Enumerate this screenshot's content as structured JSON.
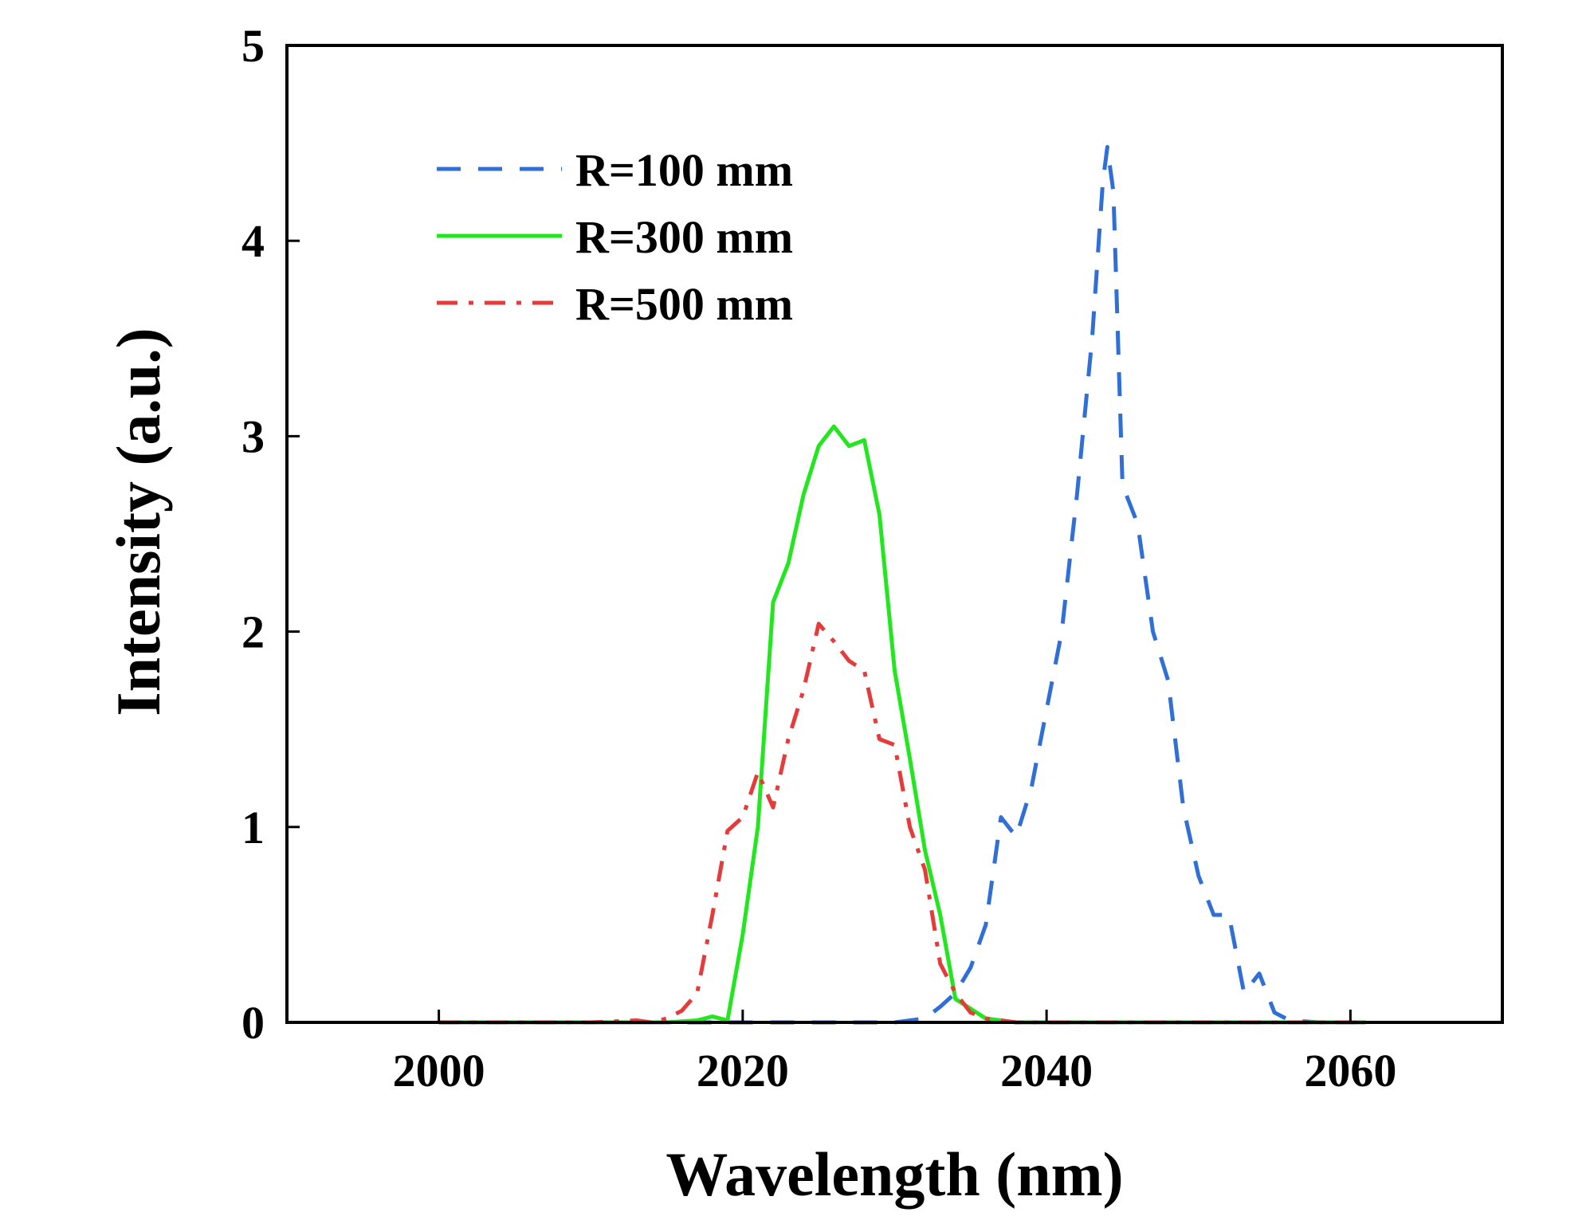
{
  "chart_data": {
    "type": "line",
    "title": "",
    "xlabel": "Wavelength (nm)",
    "ylabel": "Intensity (a.u.)",
    "xlim": [
      1990,
      2070
    ],
    "ylim": [
      0,
      5
    ],
    "xticks": [
      2000,
      2020,
      2040,
      2060
    ],
    "yticks": [
      0,
      1,
      2,
      3,
      4,
      5
    ],
    "grid": false,
    "legend_position": "top-left",
    "series": [
      {
        "name": "R=100 mm",
        "color": "#2f6fd6",
        "style": "dashed",
        "points": [
          [
            2000,
            0
          ],
          [
            2010,
            0
          ],
          [
            2020,
            0
          ],
          [
            2025,
            0
          ],
          [
            2030,
            0
          ],
          [
            2032,
            0.02
          ],
          [
            2033,
            0.08
          ],
          [
            2034,
            0.15
          ],
          [
            2035,
            0.28
          ],
          [
            2036,
            0.5
          ],
          [
            2037,
            1.05
          ],
          [
            2038,
            0.95
          ],
          [
            2039,
            1.2
          ],
          [
            2040,
            1.6
          ],
          [
            2041,
            2.0
          ],
          [
            2042,
            2.7
          ],
          [
            2043,
            3.5
          ],
          [
            2043.7,
            4.3
          ],
          [
            2044,
            4.48
          ],
          [
            2044.4,
            4.25
          ],
          [
            2045,
            2.75
          ],
          [
            2046,
            2.55
          ],
          [
            2047,
            2.0
          ],
          [
            2048,
            1.75
          ],
          [
            2049,
            1.1
          ],
          [
            2050,
            0.75
          ],
          [
            2051,
            0.55
          ],
          [
            2052,
            0.55
          ],
          [
            2053,
            0.15
          ],
          [
            2054,
            0.25
          ],
          [
            2055,
            0.05
          ],
          [
            2056,
            0.01
          ],
          [
            2058,
            0
          ],
          [
            2060,
            0
          ],
          [
            2061,
            0
          ]
        ]
      },
      {
        "name": "R=300 mm",
        "color": "#22e61e",
        "style": "solid",
        "points": [
          [
            2000,
            0
          ],
          [
            2010,
            0
          ],
          [
            2015,
            0
          ],
          [
            2017,
            0.01
          ],
          [
            2018,
            0.03
          ],
          [
            2019,
            0.01
          ],
          [
            2020,
            0.45
          ],
          [
            2021,
            1.0
          ],
          [
            2022,
            2.15
          ],
          [
            2023,
            2.35
          ],
          [
            2024,
            2.7
          ],
          [
            2025,
            2.95
          ],
          [
            2026,
            3.05
          ],
          [
            2027,
            2.95
          ],
          [
            2028,
            2.98
          ],
          [
            2029,
            2.6
          ],
          [
            2030,
            1.8
          ],
          [
            2031,
            1.35
          ],
          [
            2032,
            0.88
          ],
          [
            2033,
            0.55
          ],
          [
            2034,
            0.12
          ],
          [
            2035,
            0.07
          ],
          [
            2036,
            0.02
          ],
          [
            2037,
            0.01
          ],
          [
            2038,
            0
          ],
          [
            2040,
            0
          ],
          [
            2060,
            0
          ],
          [
            2061,
            0
          ]
        ]
      },
      {
        "name": "R=500 mm",
        "color": "#e53b3b",
        "style": "dashdot",
        "points": [
          [
            2000,
            0
          ],
          [
            2010,
            0
          ],
          [
            2013,
            0.01
          ],
          [
            2014,
            0
          ],
          [
            2015,
            0.02
          ],
          [
            2016,
            0.06
          ],
          [
            2017,
            0.15
          ],
          [
            2018,
            0.55
          ],
          [
            2019,
            0.98
          ],
          [
            2020,
            1.05
          ],
          [
            2021,
            1.28
          ],
          [
            2022,
            1.1
          ],
          [
            2023,
            1.45
          ],
          [
            2024,
            1.7
          ],
          [
            2025,
            2.04
          ],
          [
            2026,
            1.95
          ],
          [
            2027,
            1.85
          ],
          [
            2028,
            1.8
          ],
          [
            2029,
            1.45
          ],
          [
            2030,
            1.42
          ],
          [
            2031,
            1.0
          ],
          [
            2032,
            0.78
          ],
          [
            2033,
            0.3
          ],
          [
            2034,
            0.15
          ],
          [
            2035,
            0.05
          ],
          [
            2036,
            0.02
          ],
          [
            2038,
            0
          ],
          [
            2040,
            0
          ],
          [
            2060,
            0
          ],
          [
            2061,
            0
          ]
        ]
      }
    ]
  }
}
